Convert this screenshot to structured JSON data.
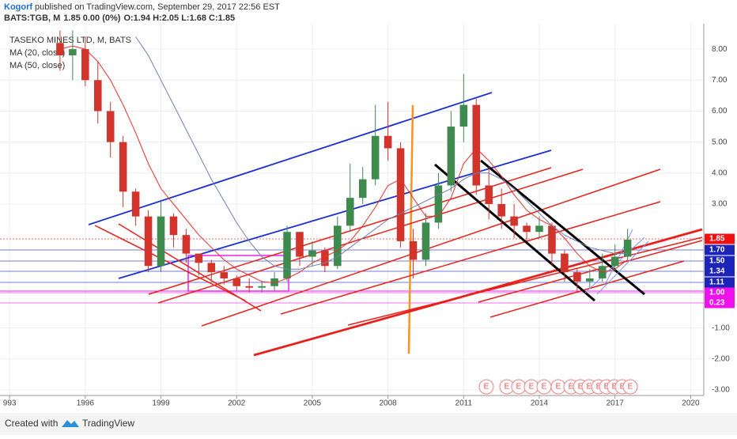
{
  "chart_data": {
    "type": "candlestick",
    "header": {
      "author": "Kogorf",
      "published": "published on TradingView.com, September 29, 2017 22:56 EST",
      "symbol": "BATS:TGB, M",
      "change": "1.85 0.00 (0%)",
      "ohlc": "O:1.94 H:2.05 L:1.68 C:1.85"
    },
    "legend": [
      "TASEKO MINES LTD, M, BATS",
      "MA (20, close)",
      "MA (50, close)"
    ],
    "footer": {
      "created": "Created with",
      "brand": "TradingView"
    },
    "earnings_label": "E",
    "up_color": "#3f8a4f",
    "down_color": "#d0342c",
    "x": [
      1995.0,
      1995.5,
      1996.0,
      1996.5,
      1997.0,
      1997.5,
      1998.0,
      1998.5,
      1999.0,
      1999.5,
      2000.0,
      2000.5,
      2001.0,
      2001.5,
      2002.0,
      2002.5,
      2003.0,
      2003.5,
      2004.0,
      2004.5,
      2005.0,
      2005.5,
      2006.0,
      2006.5,
      2007.0,
      2007.5,
      2008.0,
      2008.5,
      2009.0,
      2009.5,
      2010.0,
      2010.5,
      2011.0,
      2011.5,
      2012.0,
      2012.5,
      2013.0,
      2013.5,
      2014.0,
      2014.5,
      2015.0,
      2015.5,
      2016.0,
      2016.5,
      2017.0,
      2017.5
    ],
    "open": [
      8.2,
      7.8,
      8.0,
      7.0,
      6.0,
      5.0,
      3.4,
      2.6,
      1.0,
      2.6,
      2.0,
      1.4,
      1.1,
      0.8,
      0.6,
      0.35,
      0.3,
      0.35,
      0.6,
      2.1,
      1.3,
      1.5,
      1.0,
      2.3,
      3.2,
      3.8,
      5.2,
      4.8,
      1.8,
      1.2,
      2.4,
      3.6,
      5.5,
      6.2,
      3.6,
      3.0,
      2.6,
      2.3,
      2.1,
      2.3,
      1.4,
      0.8,
      0.5,
      0.6,
      1.0,
      1.3
    ],
    "high": [
      8.6,
      8.6,
      8.4,
      7.6,
      6.3,
      5.2,
      3.5,
      2.8,
      3.1,
      2.7,
      2.2,
      1.4,
      1.2,
      1.0,
      0.7,
      0.6,
      0.5,
      0.8,
      2.3,
      2.1,
      1.8,
      1.6,
      2.6,
      4.3,
      4.2,
      6.2,
      6.3,
      5.0,
      2.2,
      2.7,
      4.0,
      6.0,
      7.2,
      6.4,
      4.2,
      3.5,
      3.0,
      2.4,
      2.6,
      2.4,
      1.5,
      0.9,
      0.9,
      1.4,
      1.7,
      2.2
    ],
    "low": [
      7.3,
      7.0,
      6.8,
      5.6,
      4.5,
      2.9,
      2.3,
      0.8,
      0.8,
      1.6,
      1.1,
      0.7,
      0.5,
      0.4,
      0.2,
      0.15,
      0.15,
      0.2,
      0.5,
      1.0,
      1.0,
      0.8,
      0.9,
      2.1,
      3.0,
      3.6,
      4.4,
      1.6,
      0.6,
      1.0,
      2.2,
      3.4,
      5.0,
      3.3,
      2.5,
      2.2,
      1.9,
      1.8,
      1.9,
      1.0,
      0.5,
      0.2,
      0.3,
      0.5,
      0.8,
      1.2
    ],
    "close": [
      7.8,
      8.0,
      7.0,
      6.0,
      5.0,
      3.4,
      2.6,
      1.0,
      2.6,
      2.0,
      1.4,
      1.1,
      0.8,
      0.6,
      0.35,
      0.3,
      0.35,
      0.6,
      2.1,
      1.3,
      1.5,
      1.0,
      2.3,
      3.2,
      3.8,
      5.2,
      4.8,
      1.8,
      1.2,
      2.4,
      3.6,
      5.5,
      6.2,
      3.6,
      3.0,
      2.6,
      2.3,
      2.1,
      2.3,
      1.4,
      0.8,
      0.5,
      0.6,
      1.0,
      1.3,
      1.85
    ],
    "series": [
      {
        "name": "MA (20, close)",
        "color": "#e8312a",
        "values": [
          8.0,
          8.1,
          8.0,
          7.6,
          7.0,
          6.2,
          5.3,
          4.3,
          3.5,
          3.0,
          2.5,
          2.0,
          1.6,
          1.2,
          0.9,
          0.7,
          0.5,
          0.45,
          0.6,
          0.8,
          1.1,
          1.3,
          1.5,
          1.8,
          2.3,
          2.9,
          3.6,
          3.8,
          3.2,
          2.6,
          2.6,
          3.2,
          4.3,
          4.8,
          4.4,
          3.9,
          3.3,
          2.8,
          2.5,
          2.3,
          1.9,
          1.4,
          1.0,
          0.8,
          0.9,
          1.2
        ]
      },
      {
        "name": "MA (50, close)",
        "color": "#6f7fb0",
        "values": [
          null,
          null,
          null,
          null,
          null,
          null,
          8.4,
          7.8,
          7.0,
          6.2,
          5.4,
          4.6,
          3.8,
          3.1,
          2.4,
          1.8,
          1.3,
          1.0,
          0.9,
          0.9,
          1.0,
          1.1,
          1.3,
          1.6,
          1.9,
          2.2,
          2.5,
          2.7,
          2.9,
          3.1,
          3.3,
          3.5,
          3.8,
          4.0,
          4.0,
          3.8,
          3.5,
          3.1,
          2.7,
          2.3,
          2.0,
          1.8,
          1.6,
          1.5,
          1.4,
          1.4
        ]
      }
    ],
    "price_tags": [
      {
        "label": "1.85",
        "color": "#f01010"
      },
      {
        "label": "1.70",
        "color": "#1c24b8"
      },
      {
        "label": "1.50",
        "color": "#1c24b8"
      },
      {
        "label": "1.34",
        "color": "#1c24b8"
      },
      {
        "label": "1.11",
        "color": "#1c24b8"
      },
      {
        "label": "1.00",
        "color": "#ee11ee"
      },
      {
        "label": "0.23",
        "color": "#ee11ee"
      }
    ],
    "xlim": [
      1992.62,
      2020.52
    ],
    "ylim": [
      -3.18,
      8.82
    ],
    "xticks": [
      {
        "value": 1993,
        "label": "993"
      },
      1996,
      1999,
      2002,
      2005,
      2008,
      2011,
      2014,
      2017,
      2020
    ],
    "yticks": [
      {
        "value": 8,
        "label": "8.00"
      },
      {
        "value": 7,
        "label": "7.00"
      },
      {
        "value": 6,
        "label": "6.00"
      },
      {
        "value": 5,
        "label": "5.00"
      },
      {
        "value": 4,
        "label": "4.00"
      },
      {
        "value": 3,
        "label": "3.00"
      },
      {
        "value": -1,
        "label": "-1.00"
      },
      {
        "value": -2,
        "label": "-2.00"
      },
      {
        "value": -3,
        "label": "-3.00"
      }
    ],
    "grid": true
  }
}
